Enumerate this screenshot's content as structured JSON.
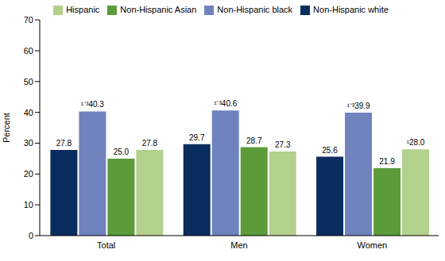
{
  "chart_data": {
    "type": "bar",
    "y_label": "Percent",
    "categories": [
      "Total",
      "Men",
      "Women"
    ],
    "series": [
      {
        "name": "Non-Hispanic white",
        "color": "#0b2c5f",
        "values": [
          27.8,
          29.7,
          25.6
        ],
        "value_labels": [
          "27.8",
          "29.7",
          "25.6"
        ]
      },
      {
        "name": "Non-Hispanic black",
        "color": "#7083bf",
        "values": [
          40.3,
          40.6,
          39.9
        ],
        "value_labels": [
          "¹⁻³40.3",
          "¹⁻³40.6",
          "¹⁻³39.9"
        ]
      },
      {
        "name": "Non-Hispanic Asian",
        "color": "#5b9b3a",
        "values": [
          25.0,
          28.7,
          21.9
        ],
        "value_labels": [
          "25.0",
          "28.7",
          "21.9"
        ]
      },
      {
        "name": "Hispanic",
        "color": "#b3d08c",
        "values": [
          27.8,
          27.3,
          28.0
        ],
        "value_labels": [
          "27.8",
          "27.3",
          "¹28.0"
        ]
      }
    ],
    "ylim": [
      0,
      70
    ],
    "yticks": [
      0,
      10,
      20,
      30,
      40,
      50,
      60,
      70
    ],
    "grid": false,
    "legend": "top",
    "data_labels": true
  }
}
